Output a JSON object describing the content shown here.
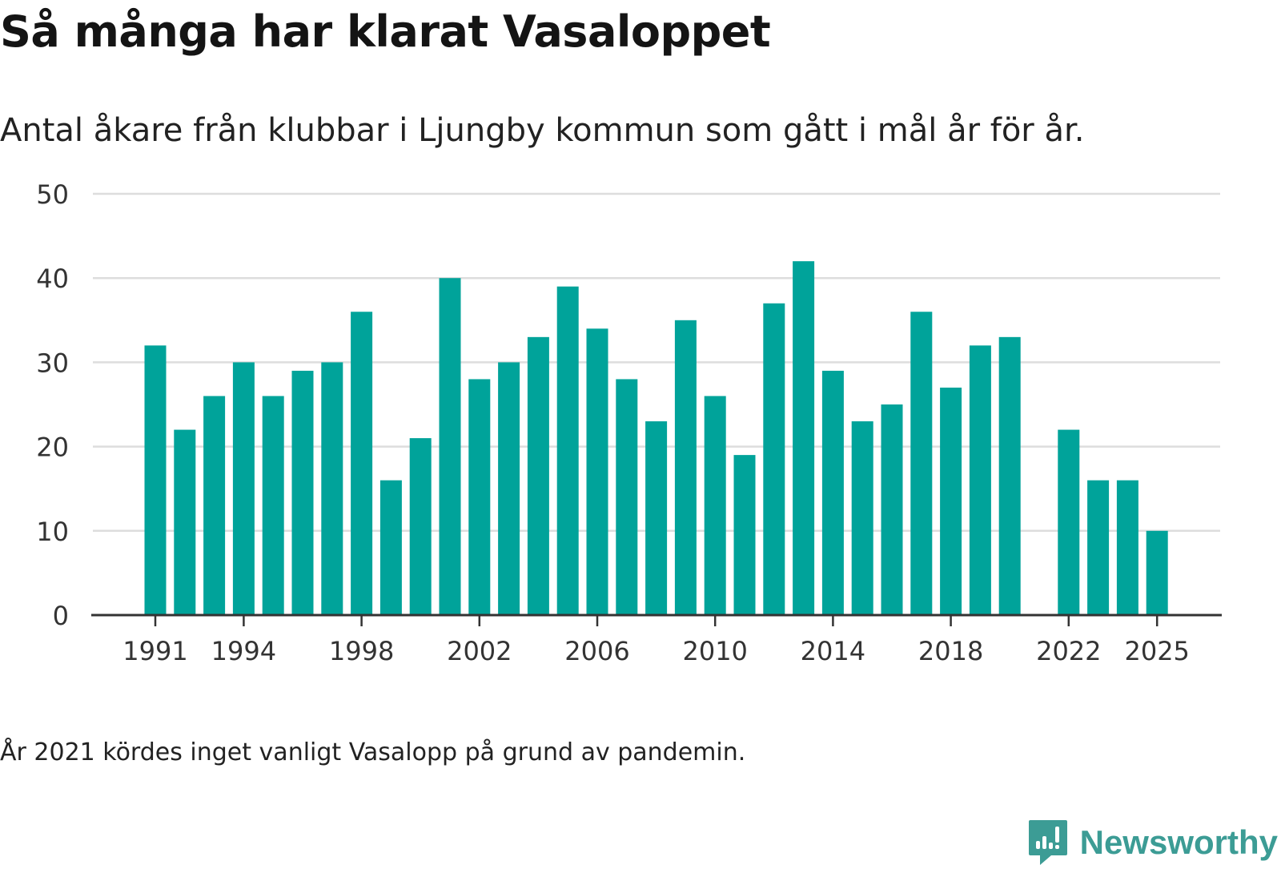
{
  "title": "Så många har klarat Vasaloppet",
  "subtitle": "Antal åkare från klubbar i Ljungby kommun som gått i mål år för år.",
  "note": "År 2021 kördes inget vanligt Vasalopp på grund av pandemin.",
  "brand": {
    "name": "Newsworthy",
    "logo_icon": "newsworthy-logo-icon",
    "color": "#3c9c95"
  },
  "colors": {
    "bar": "#00a39a",
    "grid": "#dddddd",
    "axis": "#333333",
    "tick_text": "#333333"
  },
  "chart_data": {
    "type": "bar",
    "title": "Så många har klarat Vasaloppet",
    "xlabel": "",
    "ylabel": "",
    "ylim": [
      0,
      50
    ],
    "yticks": [
      0,
      10,
      20,
      30,
      40,
      50
    ],
    "x": [
      1991,
      1992,
      1993,
      1994,
      1995,
      1996,
      1997,
      1998,
      1999,
      2000,
      2001,
      2002,
      2003,
      2004,
      2005,
      2006,
      2007,
      2008,
      2009,
      2010,
      2011,
      2012,
      2013,
      2014,
      2015,
      2016,
      2017,
      2018,
      2019,
      2020,
      2021,
      2022,
      2023,
      2024,
      2025
    ],
    "values": [
      32,
      22,
      26,
      30,
      26,
      29,
      30,
      36,
      16,
      21,
      40,
      28,
      30,
      33,
      39,
      34,
      28,
      23,
      35,
      26,
      19,
      37,
      42,
      29,
      23,
      25,
      36,
      27,
      32,
      33,
      null,
      22,
      16,
      16,
      10
    ],
    "xticks": [
      1991,
      1994,
      1998,
      2002,
      2006,
      2010,
      2014,
      2018,
      2022,
      2025
    ],
    "grid": true
  }
}
